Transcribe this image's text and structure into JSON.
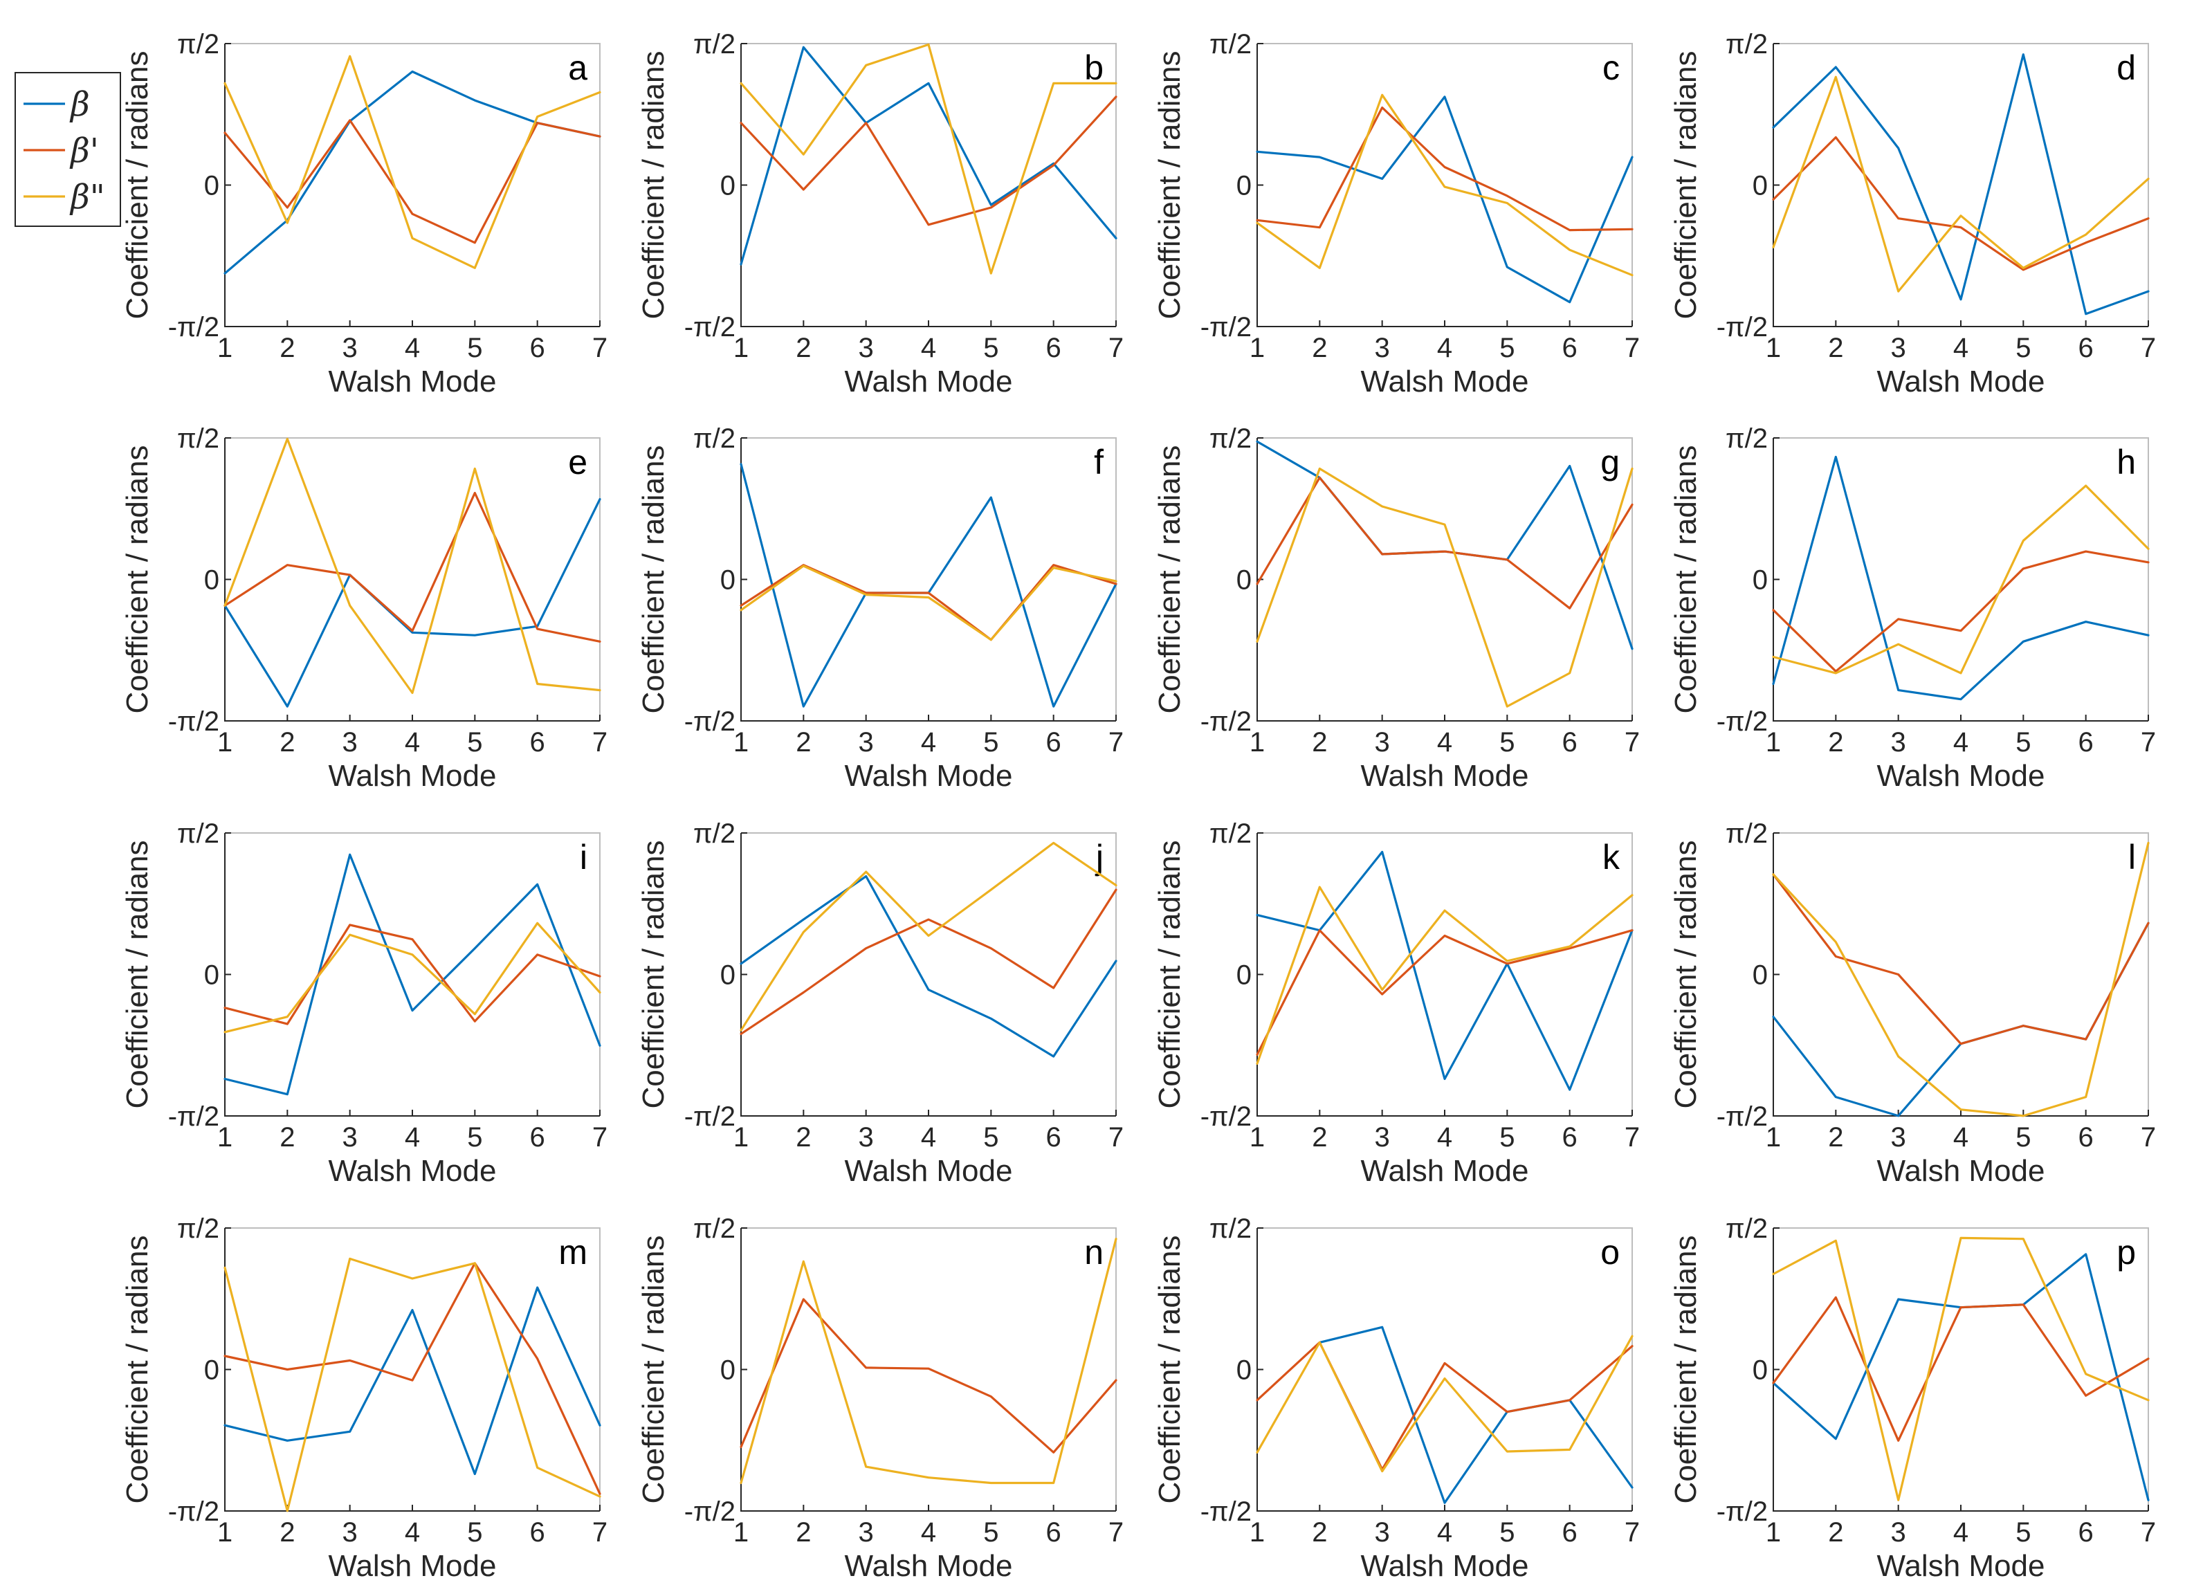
{
  "colors": {
    "beta": "#0072BD",
    "beta_prime": "#D95319",
    "beta_dprime": "#EDB120"
  },
  "legend": {
    "position": "left-outside-top",
    "entries": [
      {
        "key": "beta",
        "label": "β"
      },
      {
        "key": "beta_prime",
        "label": "β'"
      },
      {
        "key": "beta_dprime",
        "label": "β\""
      }
    ]
  },
  "chart_data": [
    {
      "type": "line",
      "panel": "a",
      "xlabel": "Walsh Mode",
      "ylabel": "Coefficient / radians",
      "x": [
        1,
        2,
        3,
        4,
        5,
        6,
        7
      ],
      "xlim": [
        1,
        7
      ],
      "ylim": [
        -1.5708,
        1.5708
      ],
      "yticks": [
        "-π/2",
        "0",
        "π/2"
      ],
      "series": [
        {
          "key": "beta",
          "values": [
            -0.98,
            -0.39,
            0.71,
            1.26,
            0.94,
            0.69,
            0.54
          ]
        },
        {
          "key": "beta_prime",
          "values": [
            0.58,
            -0.25,
            0.72,
            -0.32,
            -0.64,
            0.69,
            0.54
          ]
        },
        {
          "key": "beta_dprime",
          "values": [
            1.13,
            -0.42,
            1.43,
            -0.59,
            -0.92,
            0.76,
            1.03
          ]
        }
      ]
    },
    {
      "type": "line",
      "panel": "b",
      "xlabel": "Walsh Mode",
      "ylabel": "Coefficient / radians",
      "x": [
        1,
        2,
        3,
        4,
        5,
        6,
        7
      ],
      "xlim": [
        1,
        7
      ],
      "ylim": [
        -1.5708,
        1.5708
      ],
      "yticks": [
        "-π/2",
        "0",
        "π/2"
      ],
      "series": [
        {
          "key": "beta",
          "values": [
            -0.88,
            1.53,
            0.69,
            1.13,
            -0.22,
            0.24,
            -0.59
          ]
        },
        {
          "key": "beta_prime",
          "values": [
            0.69,
            -0.05,
            0.69,
            -0.44,
            -0.25,
            0.22,
            0.98
          ]
        },
        {
          "key": "beta_dprime",
          "values": [
            1.13,
            0.34,
            1.33,
            1.56,
            -0.98,
            1.13,
            1.13
          ]
        }
      ]
    },
    {
      "type": "line",
      "panel": "c",
      "xlabel": "Walsh Mode",
      "ylabel": "Coefficient / radians",
      "x": [
        1,
        2,
        3,
        4,
        5,
        6,
        7
      ],
      "xlim": [
        1,
        7
      ],
      "ylim": [
        -1.5708,
        1.5708
      ],
      "yticks": [
        "-π/2",
        "0",
        "π/2"
      ],
      "series": [
        {
          "key": "beta",
          "values": [
            0.37,
            0.31,
            0.07,
            0.98,
            -0.91,
            -1.3,
            0.31
          ]
        },
        {
          "key": "beta_prime",
          "values": [
            -0.39,
            -0.47,
            0.86,
            0.2,
            -0.12,
            -0.5,
            -0.49
          ]
        },
        {
          "key": "beta_dprime",
          "values": [
            -0.42,
            -0.92,
            1.0,
            -0.02,
            -0.2,
            -0.72,
            -1.0
          ]
        }
      ]
    },
    {
      "type": "line",
      "panel": "d",
      "xlabel": "Walsh Mode",
      "ylabel": "Coefficient / radians",
      "x": [
        1,
        2,
        3,
        4,
        5,
        6,
        7
      ],
      "xlim": [
        1,
        7
      ],
      "ylim": [
        -1.5708,
        1.5708
      ],
      "yticks": [
        "-π/2",
        "0",
        "π/2"
      ],
      "series": [
        {
          "key": "beta",
          "values": [
            0.64,
            1.31,
            0.41,
            -1.27,
            1.45,
            -1.43,
            -1.18
          ]
        },
        {
          "key": "beta_prime",
          "values": [
            -0.16,
            0.53,
            -0.37,
            -0.47,
            -0.94,
            -0.64,
            -0.37
          ]
        },
        {
          "key": "beta_dprime",
          "values": [
            -0.69,
            1.2,
            -1.18,
            -0.34,
            -0.92,
            -0.55,
            0.07
          ]
        }
      ]
    },
    {
      "type": "line",
      "panel": "e",
      "xlabel": "Walsh Mode",
      "ylabel": "Coefficient / radians",
      "x": [
        1,
        2,
        3,
        4,
        5,
        6,
        7
      ],
      "xlim": [
        1,
        7
      ],
      "ylim": [
        -1.5708,
        1.5708
      ],
      "yticks": [
        "-π/2",
        "0",
        "π/2"
      ],
      "series": [
        {
          "key": "beta",
          "values": [
            -0.29,
            -1.41,
            0.05,
            -0.59,
            -0.62,
            -0.52,
            0.89
          ]
        },
        {
          "key": "beta_prime",
          "values": [
            -0.29,
            0.16,
            0.05,
            -0.57,
            0.96,
            -0.55,
            -0.69
          ]
        },
        {
          "key": "beta_dprime",
          "values": [
            -0.29,
            1.56,
            -0.29,
            -1.26,
            1.23,
            -1.16,
            -1.23
          ]
        }
      ]
    },
    {
      "type": "line",
      "panel": "f",
      "xlabel": "Walsh Mode",
      "ylabel": "Coefficient / radians",
      "x": [
        1,
        2,
        3,
        4,
        5,
        6,
        7
      ],
      "xlim": [
        1,
        7
      ],
      "ylim": [
        -1.5708,
        1.5708
      ],
      "yticks": [
        "-π/2",
        "0",
        "π/2"
      ],
      "series": [
        {
          "key": "beta",
          "values": [
            1.28,
            -1.41,
            -0.15,
            -0.15,
            0.91,
            -1.41,
            -0.05
          ]
        },
        {
          "key": "beta_prime",
          "values": [
            -0.29,
            0.16,
            -0.15,
            -0.15,
            -0.67,
            0.16,
            -0.05
          ]
        },
        {
          "key": "beta_dprime",
          "values": [
            -0.34,
            0.15,
            -0.17,
            -0.2,
            -0.67,
            0.13,
            -0.02
          ]
        }
      ]
    },
    {
      "type": "line",
      "panel": "g",
      "xlabel": "Walsh Mode",
      "ylabel": "Coefficient / radians",
      "x": [
        1,
        2,
        3,
        4,
        5,
        6,
        7
      ],
      "xlim": [
        1,
        7
      ],
      "ylim": [
        -1.5708,
        1.5708
      ],
      "yticks": [
        "-π/2",
        "0",
        "π/2"
      ],
      "series": [
        {
          "key": "beta",
          "values": [
            1.53,
            1.13,
            0.28,
            0.31,
            0.22,
            1.26,
            -0.77
          ]
        },
        {
          "key": "beta_prime",
          "values": [
            -0.05,
            1.13,
            0.28,
            0.31,
            0.22,
            -0.32,
            0.83
          ]
        },
        {
          "key": "beta_dprime",
          "values": [
            -0.69,
            1.23,
            0.81,
            0.61,
            -1.41,
            -1.04,
            1.23
          ]
        }
      ]
    },
    {
      "type": "line",
      "panel": "h",
      "xlabel": "Walsh Mode",
      "ylabel": "Coefficient / radians",
      "x": [
        1,
        2,
        3,
        4,
        5,
        6,
        7
      ],
      "xlim": [
        1,
        7
      ],
      "ylim": [
        -1.5708,
        1.5708
      ],
      "yticks": [
        "-π/2",
        "0",
        "π/2"
      ],
      "series": [
        {
          "key": "beta",
          "values": [
            -1.16,
            1.36,
            -1.23,
            -1.33,
            -0.69,
            -0.47,
            -0.62
          ]
        },
        {
          "key": "beta_prime",
          "values": [
            -0.34,
            -1.02,
            -0.44,
            -0.57,
            0.12,
            0.31,
            0.19
          ]
        },
        {
          "key": "beta_dprime",
          "values": [
            -0.86,
            -1.04,
            -0.72,
            -1.04,
            0.43,
            1.04,
            0.34
          ]
        }
      ]
    },
    {
      "type": "line",
      "panel": "i",
      "xlabel": "Walsh Mode",
      "ylabel": "Coefficient / radians",
      "x": [
        1,
        2,
        3,
        4,
        5,
        6,
        7
      ],
      "xlim": [
        1,
        7
      ],
      "ylim": [
        -1.5708,
        1.5708
      ],
      "yticks": [
        "-π/2",
        "0",
        "π/2"
      ],
      "series": [
        {
          "key": "beta",
          "values": [
            -1.16,
            -1.33,
            1.33,
            -0.4,
            0.29,
            1.0,
            -0.79
          ]
        },
        {
          "key": "beta_prime",
          "values": [
            -0.37,
            -0.55,
            0.55,
            0.39,
            -0.52,
            0.22,
            -0.02
          ]
        },
        {
          "key": "beta_dprime",
          "values": [
            -0.64,
            -0.47,
            0.44,
            0.22,
            -0.44,
            0.57,
            -0.2
          ]
        }
      ]
    },
    {
      "type": "line",
      "panel": "j",
      "xlabel": "Walsh Mode",
      "ylabel": "Coefficient / radians",
      "x": [
        1,
        2,
        3,
        4,
        5,
        6,
        7
      ],
      "xlim": [
        1,
        7
      ],
      "ylim": [
        -1.5708,
        1.5708
      ],
      "yticks": [
        "-π/2",
        "0",
        "π/2"
      ],
      "series": [
        {
          "key": "beta",
          "values": [
            0.12,
            0.61,
            1.09,
            -0.17,
            -0.49,
            -0.91,
            0.15
          ]
        },
        {
          "key": "beta_prime",
          "values": [
            -0.66,
            -0.2,
            0.29,
            0.61,
            0.29,
            -0.15,
            0.94
          ]
        },
        {
          "key": "beta_dprime",
          "values": [
            -0.62,
            0.47,
            1.14,
            0.43,
            0.94,
            1.46,
            0.99
          ]
        }
      ]
    },
    {
      "type": "line",
      "panel": "k",
      "xlabel": "Walsh Mode",
      "ylabel": "Coefficient / radians",
      "x": [
        1,
        2,
        3,
        4,
        5,
        6,
        7
      ],
      "xlim": [
        1,
        7
      ],
      "ylim": [
        -1.5708,
        1.5708
      ],
      "yticks": [
        "-π/2",
        "0",
        "π/2"
      ],
      "series": [
        {
          "key": "beta",
          "values": [
            0.66,
            0.49,
            1.36,
            -1.16,
            0.12,
            -1.28,
            0.49
          ]
        },
        {
          "key": "beta_prime",
          "values": [
            -0.89,
            0.49,
            -0.22,
            0.43,
            0.12,
            0.29,
            0.49
          ]
        },
        {
          "key": "beta_dprime",
          "values": [
            -0.99,
            0.97,
            -0.17,
            0.71,
            0.15,
            0.31,
            0.88
          ]
        }
      ]
    },
    {
      "type": "line",
      "panel": "l",
      "xlabel": "Walsh Mode",
      "ylabel": "Coefficient / radians",
      "x": [
        1,
        2,
        3,
        4,
        5,
        6,
        7
      ],
      "xlim": [
        1,
        7
      ],
      "ylim": [
        -1.5708,
        1.5708
      ],
      "yticks": [
        "-π/2",
        "0",
        "π/2"
      ],
      "series": [
        {
          "key": "beta",
          "values": [
            -0.47,
            -1.36,
            -1.57,
            -0.77,
            -0.57,
            -0.72,
            0.57
          ]
        },
        {
          "key": "beta_prime",
          "values": [
            1.11,
            0.2,
            0.0,
            -0.77,
            -0.57,
            -0.72,
            0.57
          ]
        },
        {
          "key": "beta_dprime",
          "values": [
            1.11,
            0.36,
            -0.91,
            -1.5,
            -1.57,
            -1.36,
            1.46
          ]
        }
      ]
    },
    {
      "type": "line",
      "panel": "m",
      "xlabel": "Walsh Mode",
      "ylabel": "Coefficient / radians",
      "x": [
        1,
        2,
        3,
        4,
        5,
        6,
        7
      ],
      "xlim": [
        1,
        7
      ],
      "ylim": [
        -1.5708,
        1.5708
      ],
      "yticks": [
        "-π/2",
        "0",
        "π/2"
      ],
      "series": [
        {
          "key": "beta",
          "values": [
            -0.62,
            -0.79,
            -0.69,
            0.66,
            -1.16,
            0.91,
            -0.62
          ]
        },
        {
          "key": "beta_prime",
          "values": [
            0.15,
            0.0,
            0.1,
            -0.12,
            1.18,
            0.12,
            -1.38
          ]
        },
        {
          "key": "beta_dprime",
          "values": [
            1.13,
            -1.57,
            1.23,
            1.01,
            1.18,
            -1.09,
            -1.41
          ]
        }
      ]
    },
    {
      "type": "line",
      "panel": "n",
      "xlabel": "Walsh Mode",
      "ylabel": "Coefficient / radians",
      "x": [
        1,
        2,
        3,
        4,
        5,
        6,
        7
      ],
      "xlim": [
        1,
        7
      ],
      "ylim": [
        -1.5708,
        1.5708
      ],
      "yticks": [
        "-π/2",
        "0",
        "π/2"
      ],
      "series": [
        {
          "key": "beta_prime",
          "values": [
            -0.86,
            0.78,
            0.02,
            0.01,
            -0.3,
            -0.92,
            -0.12
          ]
        },
        {
          "key": "beta_dprime",
          "values": [
            -1.26,
            1.2,
            -1.08,
            -1.2,
            -1.26,
            -1.26,
            1.45
          ]
        }
      ]
    },
    {
      "type": "line",
      "panel": "o",
      "xlabel": "Walsh Mode",
      "ylabel": "Coefficient / radians",
      "x": [
        1,
        2,
        3,
        4,
        5,
        6,
        7
      ],
      "xlim": [
        1,
        7
      ],
      "ylim": [
        -1.5708,
        1.5708
      ],
      "yticks": [
        "-π/2",
        "0",
        "π/2"
      ],
      "series": [
        {
          "key": "beta",
          "values": [
            null,
            0.3,
            0.47,
            -1.48,
            -0.47,
            -0.34,
            -1.31
          ]
        },
        {
          "key": "beta_prime",
          "values": [
            -0.34,
            0.3,
            -1.11,
            0.07,
            -0.47,
            -0.34,
            0.26
          ]
        },
        {
          "key": "beta_dprime",
          "values": [
            -0.92,
            0.3,
            -1.13,
            -0.1,
            -0.91,
            -0.89,
            0.37
          ]
        }
      ]
    },
    {
      "type": "line",
      "panel": "p",
      "xlabel": "Walsh Mode",
      "ylabel": "Coefficient / radians",
      "x": [
        1,
        2,
        3,
        4,
        5,
        6,
        7
      ],
      "xlim": [
        1,
        7
      ],
      "ylim": [
        -1.5708,
        1.5708
      ],
      "yticks": [
        "-π/2",
        "0",
        "π/2"
      ],
      "series": [
        {
          "key": "beta",
          "values": [
            -0.15,
            -0.77,
            0.78,
            0.69,
            0.72,
            1.28,
            -1.45
          ]
        },
        {
          "key": "beta_prime",
          "values": [
            -0.15,
            0.8,
            -0.79,
            0.69,
            0.72,
            -0.29,
            0.12
          ]
        },
        {
          "key": "beta_dprime",
          "values": [
            1.06,
            1.43,
            -1.45,
            1.46,
            1.45,
            -0.05,
            -0.34
          ]
        }
      ]
    }
  ]
}
